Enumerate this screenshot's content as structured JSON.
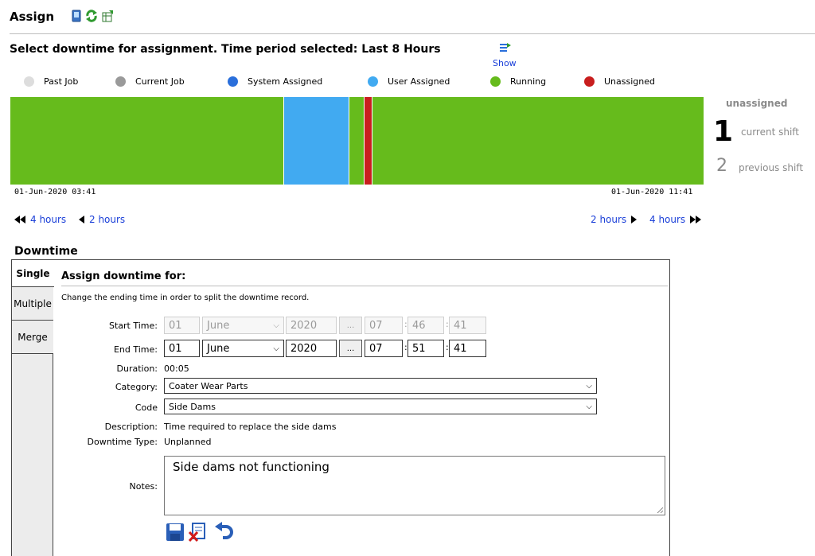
{
  "header": {
    "title": "Assign",
    "icons": [
      "device-icon",
      "refresh-icon",
      "export-icon"
    ]
  },
  "timeline": {
    "title": "Select downtime for assignment. Time period selected: Last 8 Hours",
    "show_label": "Show",
    "legend": [
      {
        "name": "legend-past-job",
        "label": "Past Job",
        "color": "#dddddd"
      },
      {
        "name": "legend-current-job",
        "label": "Current Job",
        "color": "#9a9a9a"
      },
      {
        "name": "legend-system-assigned",
        "label": "System Assigned",
        "color": "#2a6fdb"
      },
      {
        "name": "legend-user-assigned",
        "label": "User Assigned",
        "color": "#41aaf1"
      },
      {
        "name": "legend-running",
        "label": "Running",
        "color": "#66bb1c"
      },
      {
        "name": "legend-unassigned",
        "label": "Unassigned",
        "color": "#c81e1e"
      }
    ],
    "start_time": "01-Jun-2020 03:41",
    "end_time": "01-Jun-2020 11:41",
    "segments": [
      {
        "status": "Running",
        "color": "#66bb1c"
      },
      {
        "status": "User Assigned",
        "color": "#41aaf1"
      },
      {
        "status": "Running",
        "color": "#66bb1c"
      },
      {
        "status": "Unassigned",
        "color": "#c81e1e"
      },
      {
        "status": "Running",
        "color": "#66bb1c"
      }
    ]
  },
  "shifts": {
    "header": "unassigned",
    "current": {
      "count": "1",
      "label": "current shift"
    },
    "previous": {
      "count": "2",
      "label": "previous shift"
    }
  },
  "nav": {
    "back_4": "4 hours",
    "back_2": "2 hours",
    "fwd_2": "2 hours",
    "fwd_4": "4 hours"
  },
  "downtime": {
    "title": "Downtime",
    "tabs": {
      "single": "Single",
      "multiple": "Multiple",
      "merge": "Merge"
    },
    "assign_title": "Assign downtime for:",
    "instruction": "Change the ending time in order to split the downtime record.",
    "start": {
      "label": "Start Time:",
      "day": "01",
      "month": "June",
      "year": "2020",
      "hour": "07",
      "minute": "46",
      "second": "41"
    },
    "end": {
      "label": "End Time:",
      "day": "01",
      "month": "June",
      "year": "2020",
      "hour": "07",
      "minute": "51",
      "second": "41"
    },
    "dots": "...",
    "duration": {
      "label": "Duration:",
      "value": "00:05"
    },
    "category": {
      "label": "Category:",
      "value": "Coater Wear Parts"
    },
    "code": {
      "label": "Code",
      "value": "Side Dams"
    },
    "description": {
      "label": "Description:",
      "value": "Time required to replace the side dams"
    },
    "type": {
      "label": "Downtime Type:",
      "value": "Unplanned"
    },
    "notes": {
      "label": "Notes:",
      "value": "Side dams not functioning"
    },
    "actions": [
      "save-icon",
      "delete-icon",
      "undo-icon"
    ]
  }
}
